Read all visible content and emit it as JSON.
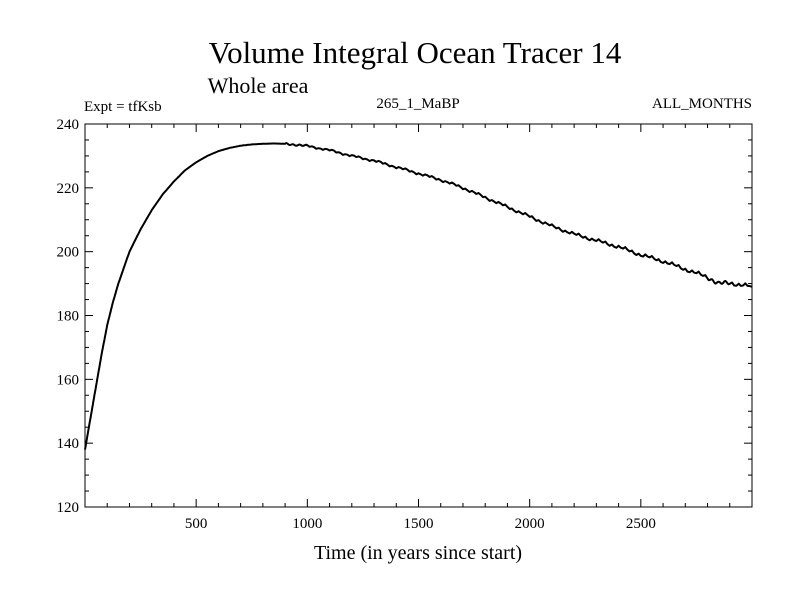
{
  "chart_data": {
    "type": "line",
    "title": "Volume Integral Ocean Tracer 14",
    "subtitle": "Whole area",
    "annotations": {
      "left": "Expt = tfKsb",
      "center": "265_1_MaBP",
      "right": "ALL_MONTHS"
    },
    "xlabel": "Time (in years since start)",
    "ylabel": "",
    "xlim": [
      0,
      3000
    ],
    "ylim": [
      120,
      240
    ],
    "xticks": [
      500,
      1000,
      1500,
      2000,
      2500
    ],
    "yticks": [
      120,
      140,
      160,
      180,
      200,
      220,
      240
    ],
    "grid": false,
    "legend": "none",
    "series": [
      {
        "x": [
          0,
          25,
          50,
          75,
          100,
          125,
          150,
          200,
          250,
          300,
          350,
          400,
          450,
          500,
          550,
          600,
          650,
          700,
          750,
          800,
          850,
          900,
          950,
          1000,
          1100,
          1200,
          1300,
          1400,
          1500,
          1600,
          1700,
          1800,
          1900,
          2000,
          2100,
          2200,
          2300,
          2400,
          2500,
          2600,
          2700,
          2800,
          2850,
          2900,
          3000
        ],
        "y": [
          138,
          148,
          158,
          168,
          177,
          184,
          190,
          200,
          207,
          213,
          218,
          222,
          225.5,
          228,
          230,
          231.5,
          232.5,
          233.2,
          233.6,
          233.8,
          233.9,
          233.8,
          233.5,
          233.1,
          231.8,
          230,
          228.5,
          226.5,
          224.5,
          222.5,
          220,
          217,
          214,
          211,
          208,
          205.5,
          203.5,
          201.5,
          199,
          197,
          194.5,
          192,
          190,
          190.2,
          189
        ]
      }
    ]
  }
}
